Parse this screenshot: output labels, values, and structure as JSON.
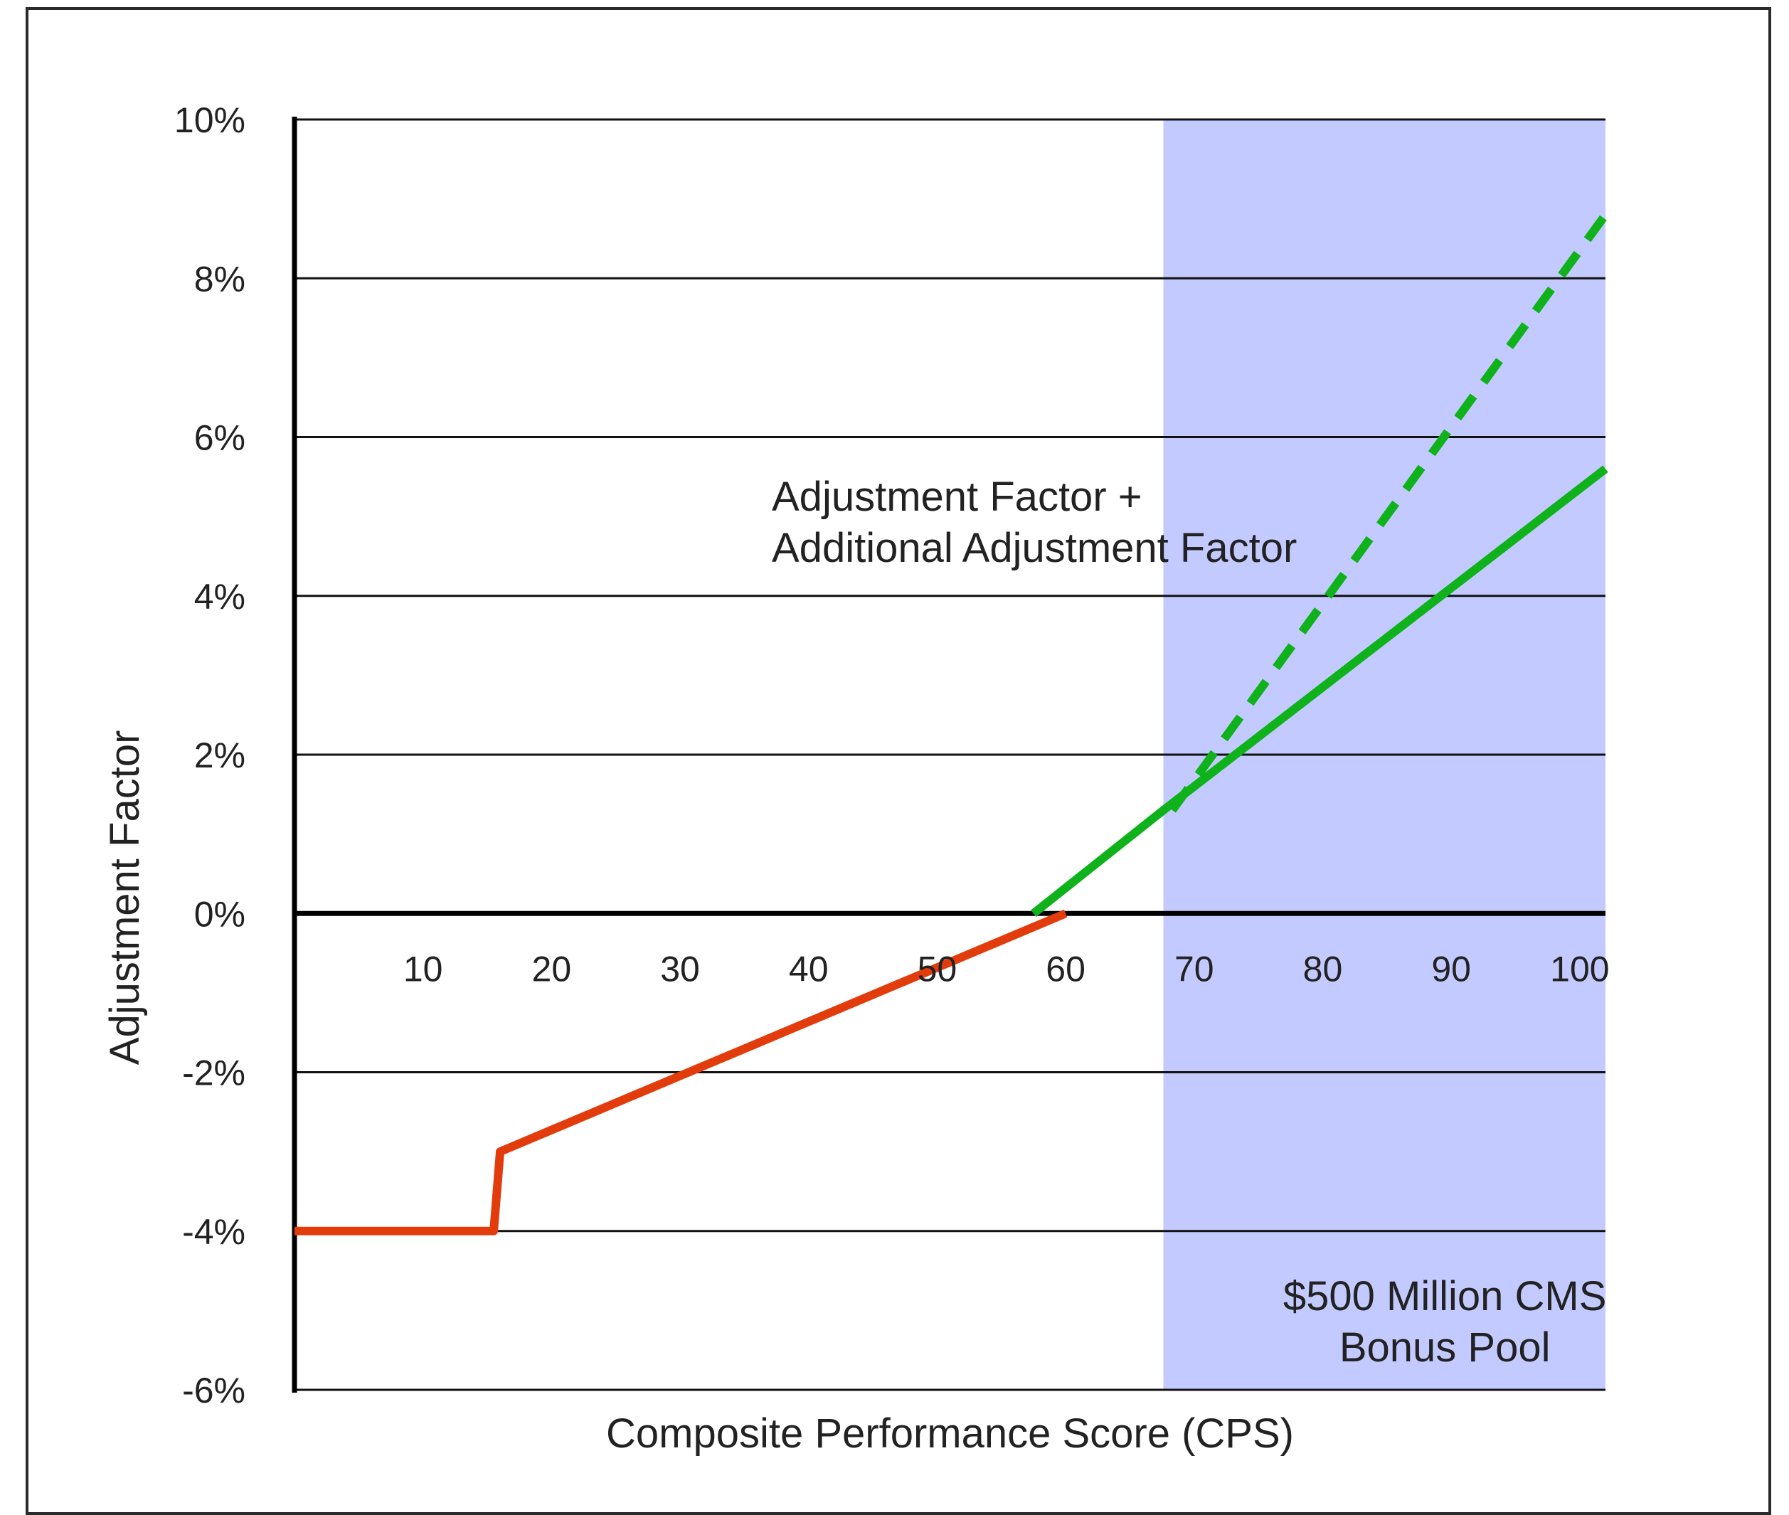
{
  "chart_data": {
    "type": "line",
    "xlabel": "Composite Performance Score (CPS)",
    "ylabel": "Adjustment Factor",
    "xlim": [
      0,
      102
    ],
    "ylim": [
      -6,
      10
    ],
    "x_ticks": [
      10,
      20,
      30,
      40,
      50,
      60,
      70,
      80,
      90,
      100
    ],
    "x_tick_labels": [
      "10",
      "20",
      "30",
      "40",
      "50",
      "60",
      "70",
      "80",
      "90",
      "100"
    ],
    "y_ticks": [
      -6,
      -4,
      -2,
      0,
      2,
      4,
      6,
      8,
      10
    ],
    "y_tick_labels": [
      "-6%",
      "-4%",
      "-2%",
      "0%",
      "2%",
      "4%",
      "6%",
      "8%",
      "10%"
    ],
    "grid": true,
    "shaded_region": {
      "x": [
        67.6,
        102
      ],
      "color": "#c3caff",
      "label_lines": [
        "$500 Million CMS",
        "Bonus Pool"
      ]
    },
    "series": [
      {
        "style": "solid",
        "color": "#e23c0d",
        "points": [
          [
            0,
            -4
          ],
          [
            15.5,
            -4
          ],
          [
            16,
            -3
          ],
          [
            60,
            0
          ]
        ]
      },
      {
        "style": "solid",
        "color": "#0fb21a",
        "points": [
          [
            57.5,
            0
          ],
          [
            67.6,
            1.3
          ],
          [
            102,
            5.6
          ]
        ]
      },
      {
        "style": "dashed",
        "color": "#0fb21a",
        "points": [
          [
            68.3,
            1.3
          ],
          [
            102,
            8.8
          ]
        ]
      }
    ],
    "annotations": [
      {
        "lines": [
          "Adjustment Factor +",
          "Additional Adjustment Factor"
        ]
      }
    ]
  }
}
